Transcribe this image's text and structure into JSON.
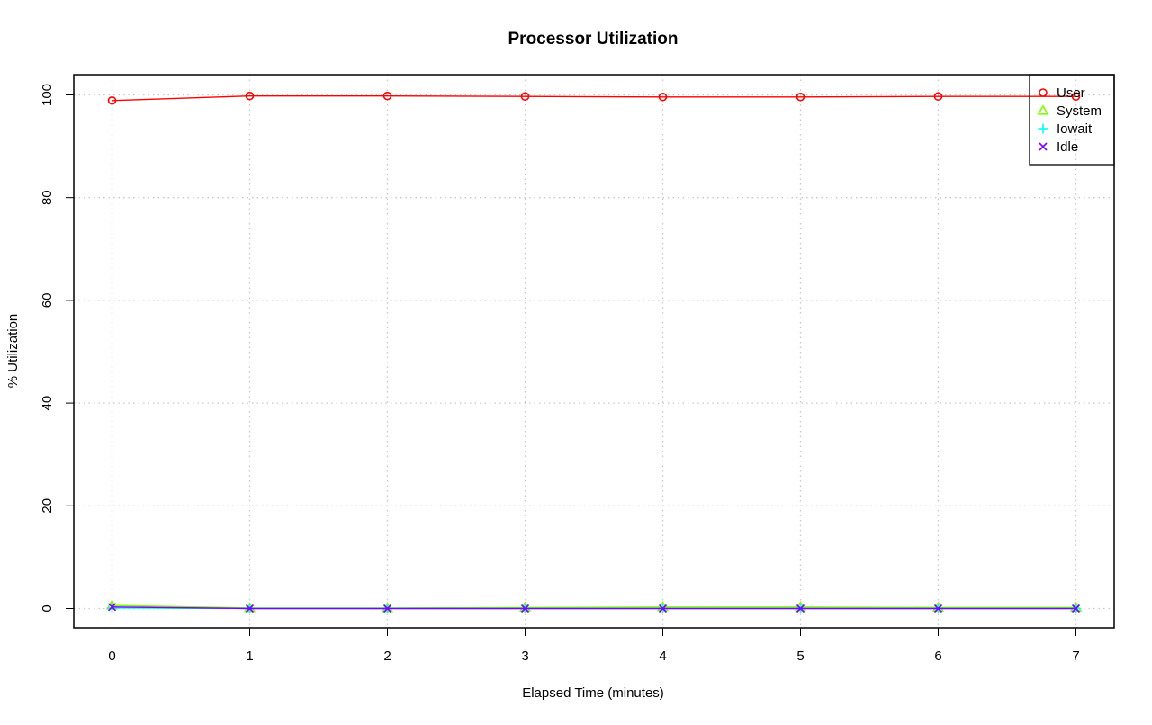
{
  "chart_data": {
    "type": "line",
    "title": "Processor Utilization",
    "xlabel": "Elapsed Time (minutes)",
    "ylabel": "% Utilization",
    "x": [
      0,
      1,
      2,
      3,
      4,
      5,
      6,
      7
    ],
    "xlim": [
      0,
      7
    ],
    "ylim": [
      0,
      100
    ],
    "x_ticks": [
      "0",
      "1",
      "2",
      "3",
      "4",
      "5",
      "6",
      "7"
    ],
    "y_ticks": [
      "0",
      "20",
      "40",
      "60",
      "80",
      "100"
    ],
    "grid": true,
    "legend_position": "top-right",
    "series": [
      {
        "name": "User",
        "color": "#ff0000",
        "marker": "circle",
        "values": [
          98.9,
          99.8,
          99.8,
          99.7,
          99.6,
          99.6,
          99.7,
          99.7
        ]
      },
      {
        "name": "System",
        "color": "#80ff00",
        "marker": "triangle",
        "values": [
          0.6,
          0.1,
          0.1,
          0.2,
          0.3,
          0.3,
          0.2,
          0.2
        ]
      },
      {
        "name": "Iowait",
        "color": "#00ffff",
        "marker": "plus",
        "values": [
          0.1,
          0.0,
          0.0,
          0.0,
          0.0,
          0.0,
          0.0,
          0.0
        ]
      },
      {
        "name": "Idle",
        "color": "#8000ff",
        "marker": "cross",
        "values": [
          0.3,
          0.0,
          0.0,
          0.0,
          0.0,
          0.0,
          0.0,
          0.0
        ]
      }
    ]
  }
}
